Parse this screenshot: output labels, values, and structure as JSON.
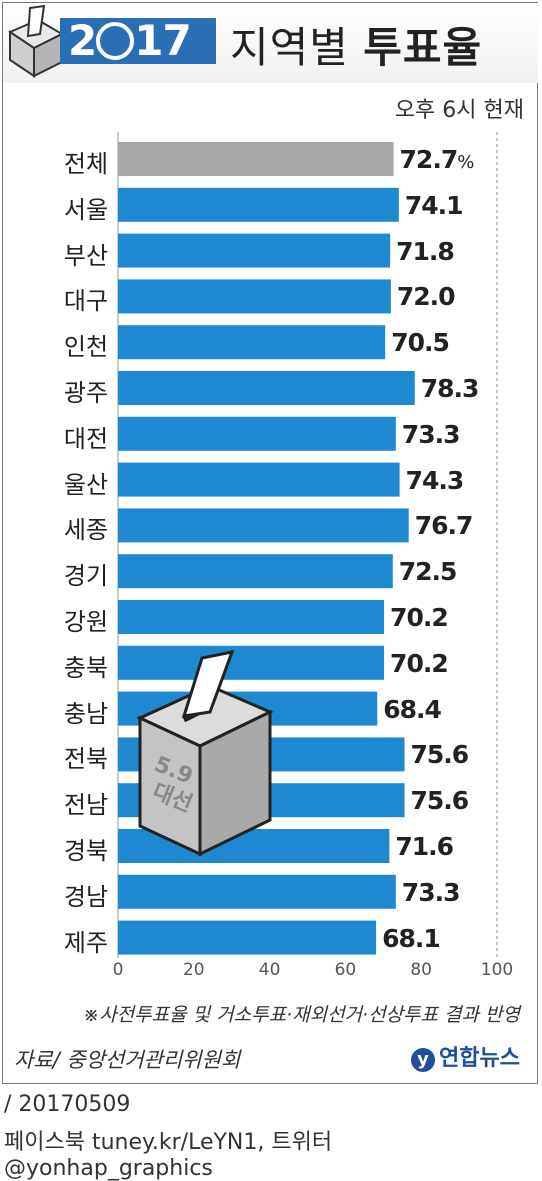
{
  "header": {
    "year": "2017",
    "title_light": "지역별",
    "title_bold": "투표율",
    "subtitle": "오후 6시 현재"
  },
  "chart_data": {
    "type": "bar",
    "orientation": "horizontal",
    "categories": [
      "전체",
      "서울",
      "부산",
      "대구",
      "인천",
      "광주",
      "대전",
      "울산",
      "세종",
      "경기",
      "강원",
      "충북",
      "충남",
      "전북",
      "전남",
      "경북",
      "경남",
      "제주"
    ],
    "values": [
      72.7,
      74.1,
      71.8,
      72.0,
      70.5,
      78.3,
      73.3,
      74.3,
      76.7,
      72.5,
      70.2,
      70.2,
      68.4,
      75.6,
      75.6,
      71.6,
      73.3,
      68.1
    ],
    "value_labels": [
      "72.7%",
      "74.1",
      "71.8",
      "72.0",
      "70.5",
      "78.3",
      "73.3",
      "74.3",
      "76.7",
      "72.5",
      "70.2",
      "70.2",
      "68.4",
      "75.6",
      "75.6",
      "71.6",
      "73.3",
      "68.1"
    ],
    "xlim": [
      0,
      100
    ],
    "xticks": [
      0,
      20,
      40,
      60,
      80,
      100
    ],
    "grid": "dotted vertical line at 100",
    "colors": {
      "total": "#a8a8aa",
      "region": "#1e88d0"
    }
  },
  "ballot_box": {
    "label_number": "5.9",
    "label_text": "대선"
  },
  "footer": {
    "note": "※사전투표율 및 거소투표·재외선거·선상투표 결과 반영",
    "source": "자료/ 중앙선거관리위원회",
    "logo": "연합뉴스",
    "date": "/ 20170509",
    "social": "페이스북 tuney.kr/LeYN1, 트위터 @yonhap_graphics"
  }
}
